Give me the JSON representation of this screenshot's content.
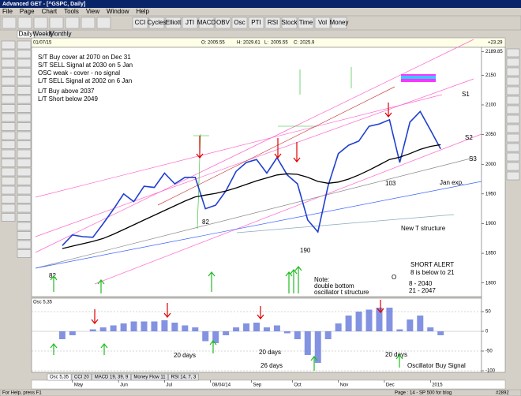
{
  "window": {
    "title": "Advanced GET - [^GSPC, Daily]",
    "menu": [
      "File",
      "Page",
      "Chart",
      "Tools",
      "View",
      "Window",
      "Help"
    ],
    "toolbar": [
      "CCI",
      "Cycles",
      "Elliott",
      "JTI",
      "MACD",
      "OBV",
      "Osc",
      "PTI",
      "RSI",
      "Stock",
      "Time",
      "Vol",
      "Money"
    ],
    "timeframes": [
      "Daily",
      "Weekly",
      "Monthly"
    ]
  },
  "info_bar": {
    "date": "01/07/15",
    "open": {
      "label": "O:",
      "value": 2005.55
    },
    "high": {
      "label": "H:",
      "value": 2029.61
    },
    "low": {
      "label": "L:",
      "value": 2005.55
    },
    "close": {
      "label": "C:",
      "value": 2025.9
    },
    "change": "+23.29"
  },
  "chart_data": [
    {
      "type": "line",
      "categories": [
        null,
        null,
        null,
        null,
        null,
        null,
        null,
        null,
        null,
        null,
        null,
        null,
        null,
        null,
        null,
        null,
        null,
        null,
        null,
        null,
        null,
        null,
        null,
        null,
        null,
        null,
        null,
        null,
        null,
        null,
        null,
        null,
        null,
        null,
        null,
        null,
        null,
        null
      ],
      "xlim": [
        -3,
        41
      ],
      "series": [
        {
          "color": "#1f3fd0",
          "values": [
            1863,
            1881,
            1878,
            1877,
            1900,
            1924,
            1950,
            1937,
            1963,
            1961,
            1985,
            1967,
            1978,
            1978,
            1925,
            1931,
            1955,
            1988,
            2003,
            2008,
            1985,
            2011,
            1982,
            1967,
            1906,
            1886,
            1964,
            2018,
            2032,
            2039,
            2064,
            2068,
            2075,
            2003,
            2071,
            2089,
            2058,
            2026
          ]
        },
        {
          "color": "#000000",
          "values": [
            1858,
            1862,
            1866,
            1870,
            1875,
            1882,
            1890,
            1898,
            1906,
            1914,
            1922,
            1930,
            1938,
            1945,
            1948,
            1951,
            1955,
            1960,
            1966,
            1972,
            1977,
            1982,
            1984,
            1983,
            1978,
            1971,
            1968,
            1970,
            1975,
            1982,
            1990,
            1999,
            2008,
            2012,
            2018,
            2025,
            2030,
            2033
          ]
        }
      ],
      "ylim": [
        1777,
        2197
      ],
      "yticks": [
        1800,
        1850,
        1900,
        1950,
        2000,
        2050,
        2100,
        2150,
        2189.85
      ],
      "annotations": [
        "S/T Buy cover at 2070 on Dec 31",
        "S/T SELL Signal at 2030 on 5 Jan",
        "OSC weak - cover - no signal",
        "L/T SELL Signal at 2002 on 6 Jan",
        "L/T Buy above 2037",
        "L/T Short below 2049",
        "82",
        "82",
        "190",
        "103",
        "S1",
        "S2",
        "S3",
        "Jan exp.",
        "New T structure",
        "SHORT ALERT",
        "8 is below to 21",
        "8   - 2040",
        "21  - 2047",
        "O",
        "Note:",
        "double bottom",
        "oscillator t structure"
      ]
    },
    {
      "type": "bar",
      "title": "Osc 5,35",
      "categories": [
        null,
        null,
        null,
        null,
        null,
        null,
        null,
        null,
        null,
        null,
        null,
        null,
        null,
        null,
        null,
        null,
        null,
        null,
        null,
        null,
        null,
        null,
        null,
        null,
        null,
        null,
        null,
        null,
        null,
        null,
        null,
        null,
        null,
        null,
        null,
        null,
        null,
        null
      ],
      "xlim": [
        -3,
        41
      ],
      "values": [
        -20,
        -10,
        0,
        5,
        10,
        15,
        20,
        25,
        25,
        25,
        28,
        22,
        15,
        10,
        -25,
        -30,
        -10,
        10,
        20,
        22,
        10,
        15,
        -5,
        -20,
        -60,
        -80,
        -20,
        20,
        40,
        50,
        55,
        60,
        60,
        5,
        30,
        40,
        10,
        -10
      ],
      "color": "#5a6fd8",
      "ylim": [
        -104,
        84
      ],
      "yticks": [
        50,
        0,
        -50,
        -100
      ],
      "xticks": [
        {
          "value": 1,
          "label": "May"
        },
        {
          "value": 5.5,
          "label": "Jun"
        },
        {
          "value": 10,
          "label": "Jul"
        },
        {
          "value": 14.5,
          "label": "08/04/14"
        },
        {
          "value": 18.5,
          "label": "Sep"
        },
        {
          "value": 22.5,
          "label": "Oct"
        },
        {
          "value": 27,
          "label": "Nov"
        },
        {
          "value": 31.5,
          "label": "Dec"
        },
        {
          "value": 36,
          "label": "2015"
        }
      ],
      "annotations": [
        "20 days",
        "20 days",
        "26 days",
        "20 days",
        "Oscillator Buy Signal"
      ]
    }
  ],
  "indicator_tabs": [
    "Osc 5,35",
    "CCI 20",
    "MACD 19, 39, 9",
    "Money Flow 11",
    "RSI 14, 7, 3"
  ],
  "status_bar": {
    "help": "For Help, press F1",
    "page": "Page : 14 - SP 500 for blog",
    "id": "#2892"
  }
}
